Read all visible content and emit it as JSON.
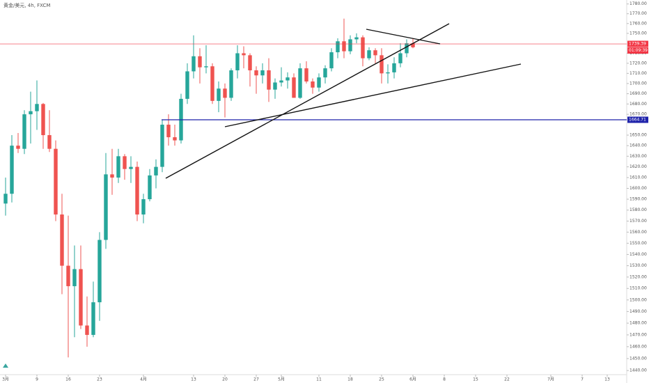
{
  "chart_data": {
    "type": "candlestick",
    "title": "黄金/美元, 4h, FXCM",
    "log_scale": true,
    "grid": false,
    "up_color": "#26a69a",
    "down_color": "#ef5350",
    "open": [
      1586,
      1595,
      1640,
      1637,
      1670,
      1673,
      1680,
      1650,
      1637,
      1576,
      1530,
      1512,
      1527,
      1478,
      1470,
      1498,
      1553,
      1613,
      1610,
      1630,
      1618,
      1620,
      1576,
      1590,
      1612,
      1620,
      1660,
      1648,
      1645,
      1685,
      1712,
      1727,
      1716,
      1717,
      1683,
      1695,
      1686,
      1713,
      1730,
      1728,
      1713,
      1708,
      1713,
      1694,
      1701,
      1703,
      1706,
      1686,
      1715,
      1702,
      1696,
      1706,
      1715,
      1731,
      1742,
      1732,
      1744,
      1746,
      1725,
      1733,
      1728,
      1710,
      1711,
      1720,
      1730,
      1740
    ],
    "high": [
      1610,
      1650,
      1652,
      1674,
      1692,
      1703,
      1681,
      1674,
      1645,
      1595,
      1575,
      1548,
      1548,
      1503,
      1516,
      1560,
      1633,
      1637,
      1637,
      1632,
      1630,
      1625,
      1595,
      1618,
      1627,
      1665,
      1670,
      1660,
      1690,
      1720,
      1748,
      1735,
      1738,
      1720,
      1702,
      1700,
      1715,
      1738,
      1737,
      1730,
      1717,
      1720,
      1725,
      1705,
      1716,
      1711,
      1710,
      1720,
      1722,
      1705,
      1710,
      1718,
      1735,
      1745,
      1765,
      1748,
      1750,
      1748,
      1736,
      1735,
      1735,
      1719,
      1726,
      1740,
      1744,
      1745
    ],
    "low": [
      1575,
      1587,
      1633,
      1632,
      1642,
      1655,
      1637,
      1634,
      1570,
      1505,
      1451,
      1468,
      1475,
      1460,
      1468,
      1482,
      1545,
      1594,
      1605,
      1608,
      1605,
      1570,
      1568,
      1588,
      1600,
      1615,
      1640,
      1640,
      1642,
      1680,
      1705,
      1700,
      1710,
      1680,
      1672,
      1667,
      1683,
      1705,
      1715,
      1697,
      1690,
      1700,
      1682,
      1685,
      1697,
      1695,
      1686,
      1685,
      1700,
      1690,
      1692,
      1700,
      1712,
      1725,
      1725,
      1729,
      1740,
      1717,
      1723,
      1720,
      1700,
      1700,
      1705,
      1716,
      1726,
      1735
    ],
    "close": [
      1595,
      1640,
      1637,
      1670,
      1673,
      1680,
      1650,
      1637,
      1576,
      1530,
      1512,
      1527,
      1478,
      1470,
      1498,
      1553,
      1613,
      1610,
      1630,
      1618,
      1620,
      1576,
      1590,
      1612,
      1620,
      1660,
      1648,
      1645,
      1685,
      1712,
      1727,
      1716,
      1717,
      1683,
      1695,
      1686,
      1713,
      1730,
      1728,
      1713,
      1708,
      1713,
      1694,
      1701,
      1703,
      1706,
      1686,
      1715,
      1702,
      1696,
      1706,
      1715,
      1731,
      1742,
      1732,
      1744,
      1746,
      1725,
      1733,
      1728,
      1710,
      1711,
      1720,
      1730,
      1740,
      1736
    ],
    "ylim": [
      1436.6,
      1784.1
    ],
    "yticks": [
      {
        "value": 1440,
        "label": "1440.00"
      },
      {
        "value": 1450,
        "label": "1450.00"
      },
      {
        "value": 1460,
        "label": "1460.00"
      },
      {
        "value": 1470,
        "label": "1470.00"
      },
      {
        "value": 1480,
        "label": "1480.00"
      },
      {
        "value": 1490,
        "label": "1490.00"
      },
      {
        "value": 1500,
        "label": "1500.00"
      },
      {
        "value": 1510,
        "label": "1510.00"
      },
      {
        "value": 1520,
        "label": "1520.00"
      },
      {
        "value": 1530,
        "label": "1530.00"
      },
      {
        "value": 1540,
        "label": "1540.00"
      },
      {
        "value": 1550,
        "label": "1550.00"
      },
      {
        "value": 1560,
        "label": "1560.00"
      },
      {
        "value": 1570,
        "label": "1570.00"
      },
      {
        "value": 1580,
        "label": "1580.00"
      },
      {
        "value": 1590,
        "label": "1590.00"
      },
      {
        "value": 1600,
        "label": "1600.00"
      },
      {
        "value": 1610,
        "label": "1610.00"
      },
      {
        "value": 1620,
        "label": "1620.00"
      },
      {
        "value": 1630,
        "label": "1630.00"
      },
      {
        "value": 1640,
        "label": "1640.00"
      },
      {
        "value": 1650,
        "label": "1650.00"
      },
      {
        "value": 1670,
        "label": "1670.00"
      },
      {
        "value": 1680,
        "label": "1680.00"
      },
      {
        "value": 1690,
        "label": "1690.00"
      },
      {
        "value": 1700,
        "label": "1700.00"
      },
      {
        "value": 1710,
        "label": "1710.00"
      },
      {
        "value": 1720,
        "label": "1720.00"
      },
      {
        "value": 1730,
        "label": "1730.00"
      },
      {
        "value": 1750,
        "label": "1750.00"
      },
      {
        "value": 1760,
        "label": "1760.00"
      },
      {
        "value": 1770,
        "label": "1770.00"
      },
      {
        "value": 1780,
        "label": "1780.00"
      }
    ],
    "xlim": [
      0,
      99
    ],
    "xticks": [
      {
        "value": 0,
        "label": "3月"
      },
      {
        "value": 5,
        "label": "9"
      },
      {
        "value": 10,
        "label": "16"
      },
      {
        "value": 15,
        "label": "23"
      },
      {
        "value": 22,
        "label": "4月"
      },
      {
        "value": 30,
        "label": "13"
      },
      {
        "value": 35,
        "label": "20"
      },
      {
        "value": 40,
        "label": "27"
      },
      {
        "value": 44,
        "label": "5月"
      },
      {
        "value": 50,
        "label": "11"
      },
      {
        "value": 55,
        "label": "18"
      },
      {
        "value": 60,
        "label": "25"
      },
      {
        "value": 65,
        "label": "6月"
      },
      {
        "value": 70,
        "label": "8"
      },
      {
        "value": 75,
        "label": "15"
      },
      {
        "value": 80,
        "label": "22"
      },
      {
        "value": 87,
        "label": "7月"
      },
      {
        "value": 92,
        "label": "7"
      },
      {
        "value": 96,
        "label": "13"
      }
    ],
    "price_lines": [
      {
        "value": 1739.39,
        "color": "#f23645",
        "countdown": "01:09:39"
      },
      {
        "value": 1664.71,
        "color": "#1e22aa"
      }
    ]
  }
}
